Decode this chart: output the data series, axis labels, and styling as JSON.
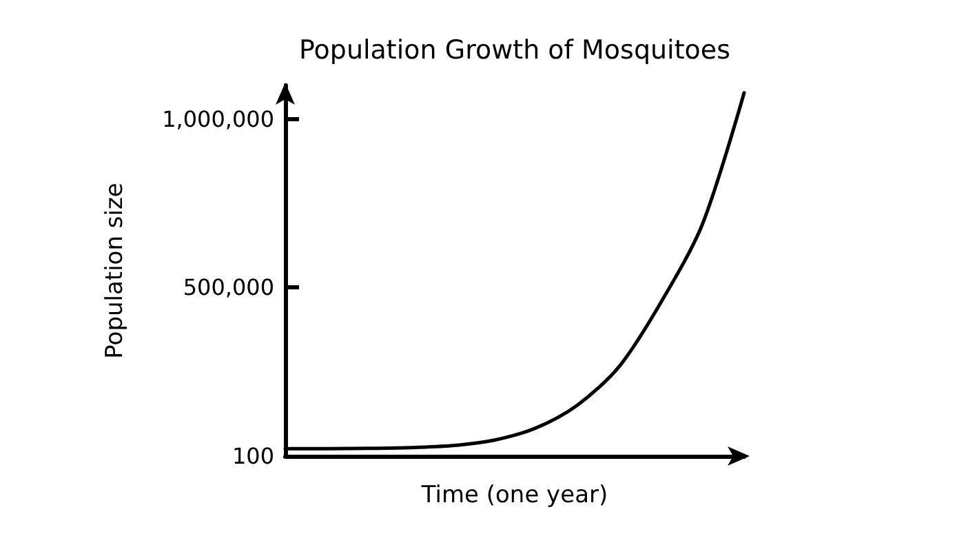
{
  "chart_data": {
    "type": "line",
    "title": "Population Growth of Mosquitoes",
    "xlabel": "Time (one year)",
    "ylabel": "Population size",
    "categories": [
      null,
      null,
      null,
      null,
      null,
      null,
      null,
      null,
      null,
      null,
      null,
      null
    ],
    "series": [
      {
        "color": "#000000",
        "values": [
          22000,
          22000,
          23000,
          25000,
          31000,
          47000,
          83000,
          151000,
          265000,
          455000,
          688000,
          1078000
        ]
      }
    ],
    "ylim": [
      0,
      1100000
    ],
    "yticks": [
      100,
      {
        "value": 500000,
        "label": "500,000"
      },
      {
        "value": 1000000,
        "label": "1,000,000"
      }
    ],
    "tick_labels": "y",
    "grid": false,
    "marker": "none",
    "line_style": "solid"
  }
}
